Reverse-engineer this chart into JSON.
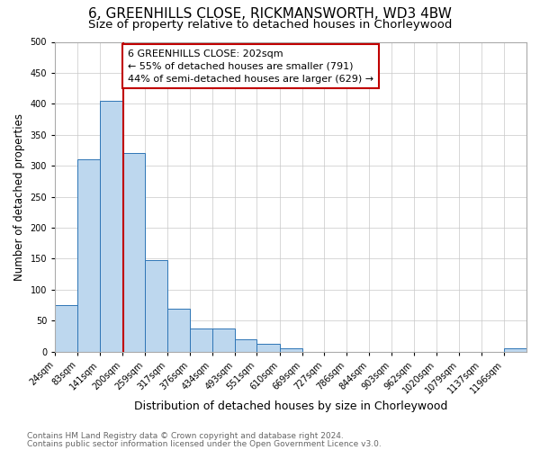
{
  "title": "6, GREENHILLS CLOSE, RICKMANSWORTH, WD3 4BW",
  "subtitle": "Size of property relative to detached houses in Chorleywood",
  "xlabel": "Distribution of detached houses by size in Chorleywood",
  "ylabel": "Number of detached properties",
  "footnote1": "Contains HM Land Registry data © Crown copyright and database right 2024.",
  "footnote2": "Contains public sector information licensed under the Open Government Licence v3.0.",
  "bin_labels": [
    "24sqm",
    "83sqm",
    "141sqm",
    "200sqm",
    "259sqm",
    "317sqm",
    "376sqm",
    "434sqm",
    "493sqm",
    "551sqm",
    "610sqm",
    "669sqm",
    "727sqm",
    "786sqm",
    "844sqm",
    "903sqm",
    "962sqm",
    "1020sqm",
    "1079sqm",
    "1137sqm",
    "1196sqm"
  ],
  "bin_edges": [
    24,
    83,
    141,
    200,
    259,
    317,
    376,
    434,
    493,
    551,
    610,
    669,
    727,
    786,
    844,
    903,
    962,
    1020,
    1079,
    1137,
    1196,
    1255
  ],
  "bar_heights": [
    75,
    310,
    405,
    320,
    148,
    70,
    37,
    37,
    20,
    12,
    6,
    0,
    0,
    0,
    0,
    0,
    0,
    0,
    0,
    0,
    5
  ],
  "bar_color": "#bdd7ee",
  "bar_edge_color": "#2e75b6",
  "property_size": 202,
  "vline_color": "#c00000",
  "annotation_line1": "6 GREENHILLS CLOSE: 202sqm",
  "annotation_line2": "← 55% of detached houses are smaller (791)",
  "annotation_line3": "44% of semi-detached houses are larger (629) →",
  "annotation_box_color": "#ffffff",
  "annotation_box_edge_color": "#c00000",
  "ylim": [
    0,
    500
  ],
  "yticks": [
    0,
    50,
    100,
    150,
    200,
    250,
    300,
    350,
    400,
    450,
    500
  ],
  "title_fontsize": 11,
  "subtitle_fontsize": 9.5,
  "xlabel_fontsize": 9,
  "ylabel_fontsize": 8.5,
  "tick_fontsize": 7,
  "annotation_fontsize": 8,
  "footnote_fontsize": 6.5,
  "background_color": "#ffffff",
  "grid_color": "#c8c8c8"
}
